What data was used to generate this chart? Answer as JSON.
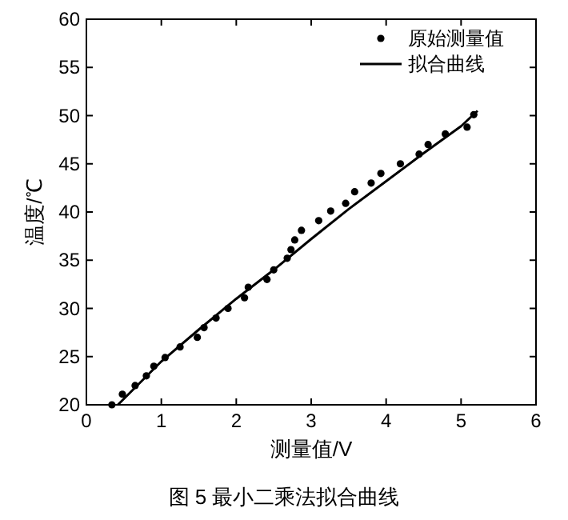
{
  "chart_data": {
    "type": "scatter",
    "xlabel": "测量值/V",
    "ylabel": "温度/℃",
    "xlim": [
      0,
      6
    ],
    "ylim": [
      20,
      60
    ],
    "xticks": [
      0,
      1,
      2,
      3,
      4,
      5,
      6
    ],
    "yticks": [
      20,
      25,
      30,
      35,
      40,
      45,
      50,
      55,
      60
    ],
    "grid": false,
    "legend": "top right",
    "annotations": [
      "图 5   最小二乘法拟合曲线"
    ],
    "series": [
      {
        "name": "原始测量值",
        "marker": "circle",
        "color": "#000000",
        "x": [
          0.34,
          0.48,
          0.65,
          0.8,
          0.9,
          1.05,
          1.25,
          1.48,
          1.57,
          1.73,
          1.89,
          2.11,
          2.16,
          2.41,
          2.5,
          2.68,
          2.73,
          2.78,
          2.87,
          3.1,
          3.26,
          3.46,
          3.58,
          3.8,
          3.93,
          4.19,
          4.44,
          4.56,
          4.79,
          5.08,
          5.17
        ],
        "values": [
          20,
          21.1,
          22,
          23,
          24,
          24.9,
          26,
          27,
          28,
          29,
          30,
          31.1,
          32.2,
          33,
          34,
          35.2,
          36.1,
          37.1,
          38.1,
          39.1,
          40.1,
          40.9,
          42.1,
          43,
          44,
          45,
          46,
          47,
          48.1,
          48.8,
          50.1
        ]
      },
      {
        "name": "拟合曲线",
        "type": "line",
        "marker": "none",
        "line_style": "solid",
        "color": "#000000",
        "x": [
          0.42,
          1,
          1.5,
          2,
          2.5,
          3,
          3.5,
          4,
          4.5,
          5,
          5.22
        ],
        "values": [
          20,
          24.5,
          27.8,
          31,
          34,
          37.2,
          40.3,
          43.2,
          46.1,
          48.9,
          50.5
        ]
      }
    ]
  }
}
